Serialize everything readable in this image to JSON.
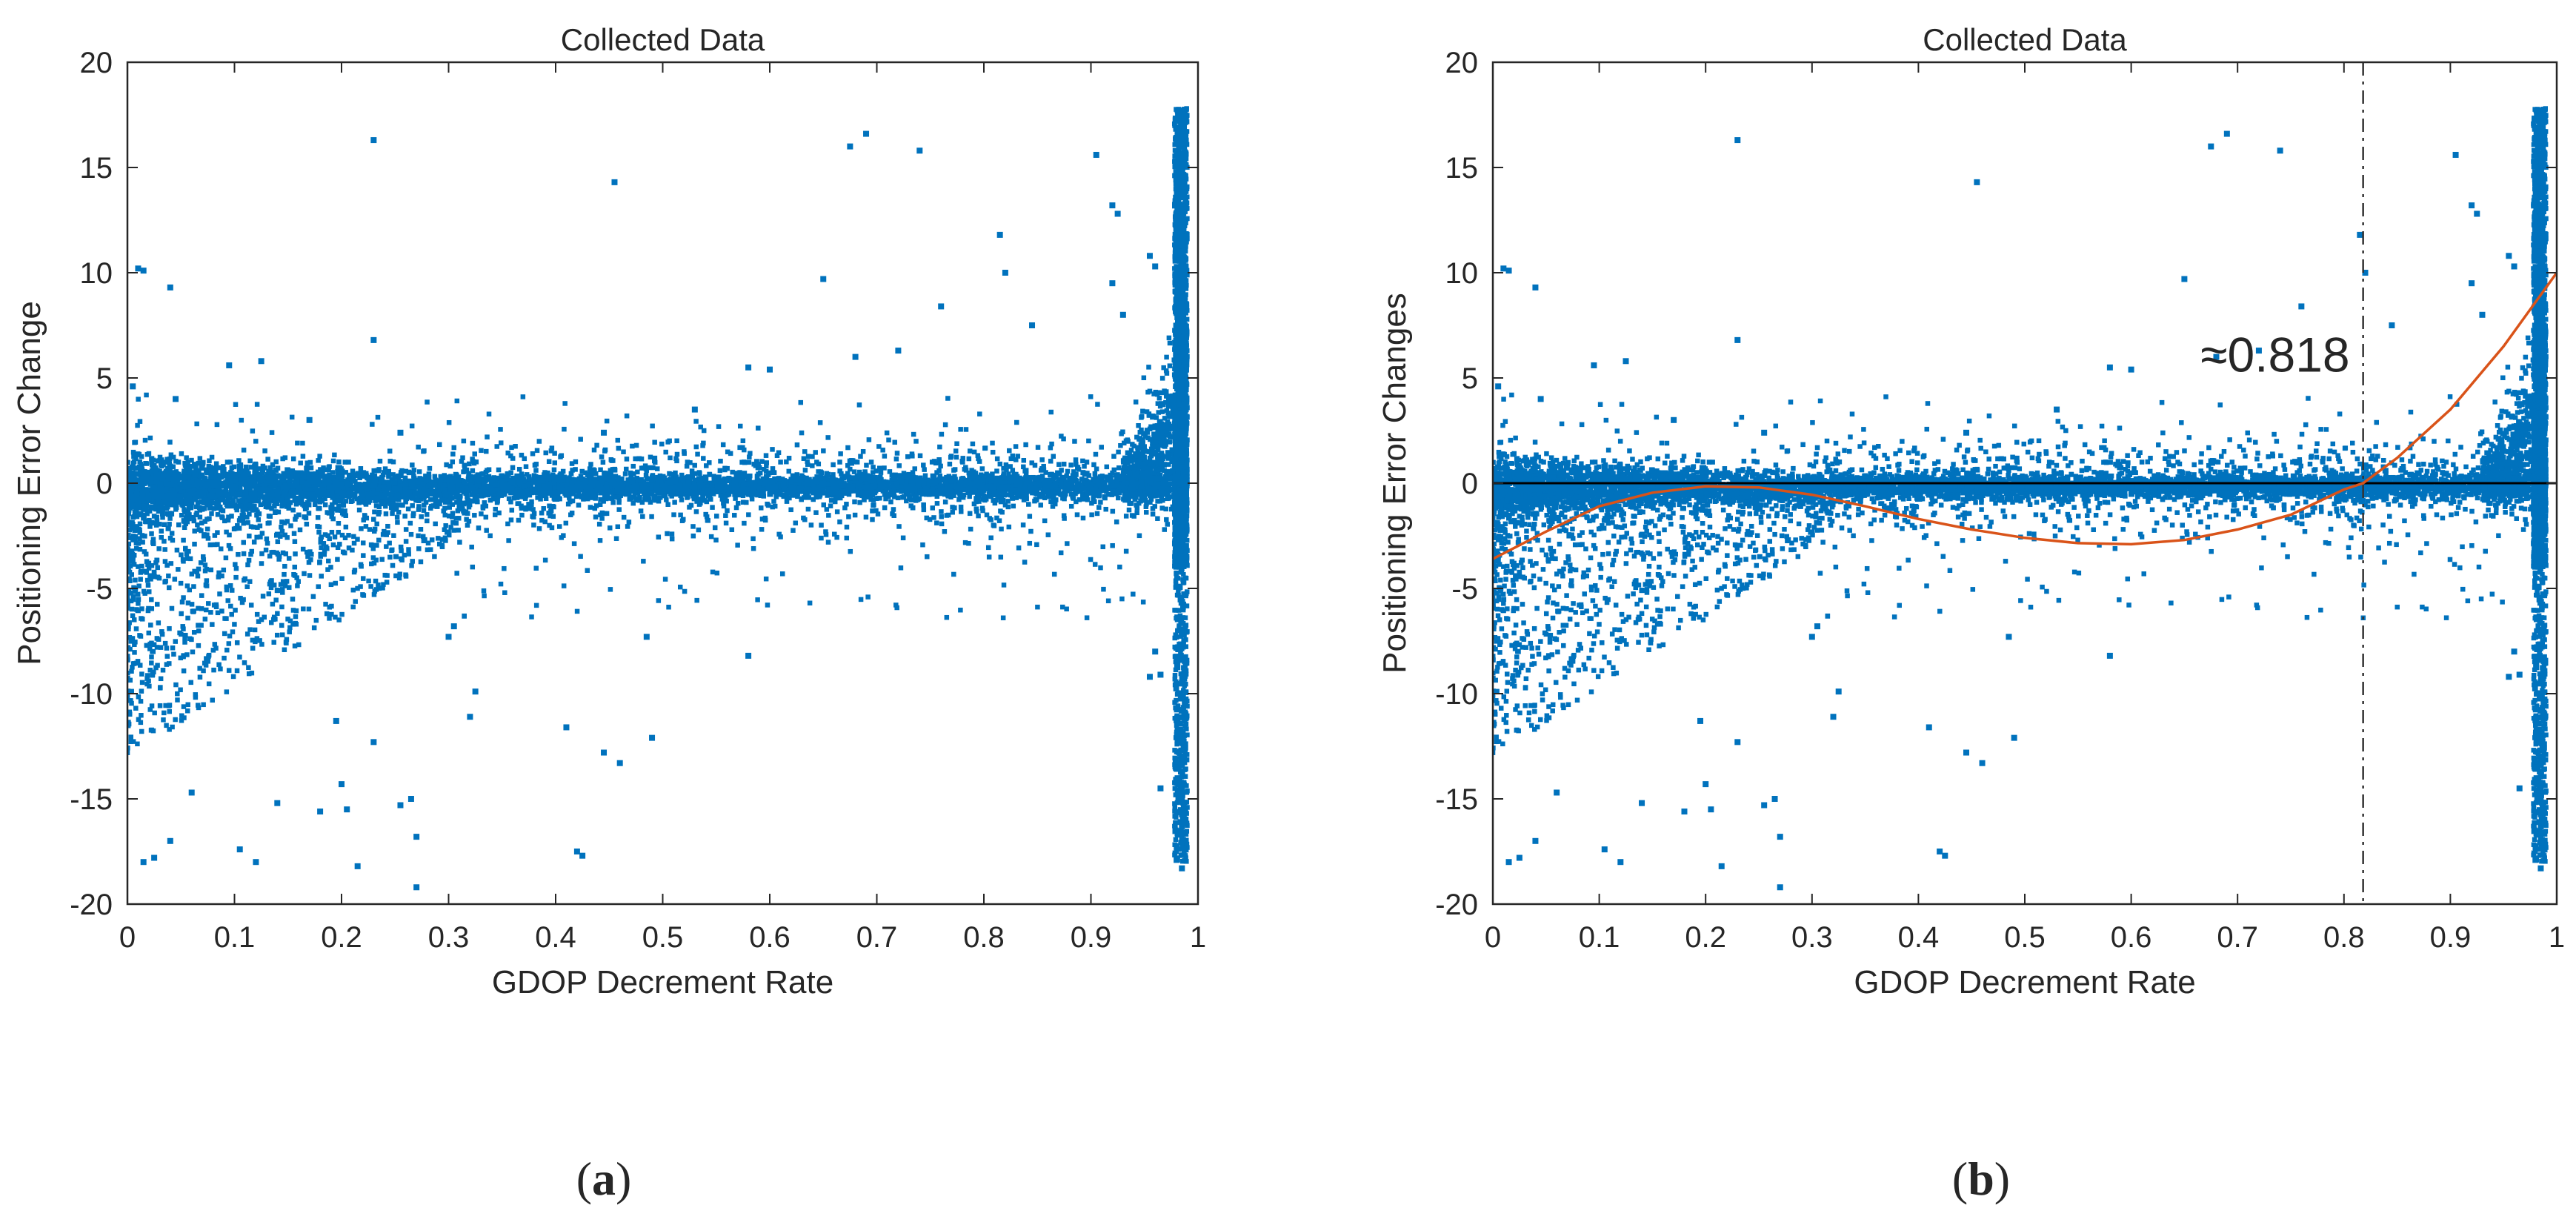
{
  "colors": {
    "points": "#0072BD",
    "fit_curve": "#D95319",
    "zero_line": "#000000",
    "axis": "#262626",
    "background": "#ffffff"
  },
  "panels": [
    {
      "caption_label": "a",
      "caption_open": "(",
      "caption_close": ")"
    },
    {
      "caption_label": "b",
      "caption_open": "(",
      "caption_close": ")"
    }
  ],
  "chart_data": [
    {
      "type": "scatter",
      "title": "Collected Data",
      "xlabel": "GDOP Decrement Rate",
      "ylabel": "Positioning Error Change",
      "xlim": [
        0,
        1
      ],
      "ylim": [
        -20,
        20
      ],
      "xticks": [
        "0",
        "0.1",
        "0.2",
        "0.3",
        "0.4",
        "0.5",
        "0.6",
        "0.7",
        "0.8",
        "0.9",
        "1"
      ],
      "yticks": [
        "20",
        "15",
        "10",
        "5",
        "0",
        "-5",
        "-10",
        "-15",
        "-20"
      ],
      "grid": false,
      "legend": "none",
      "series": [
        {
          "marker": "point",
          "description_of_distribution": "dense band around y=0 for x in [0,0.98]; spread widening toward x=0 on negative side; vertical spike of points near x=0.985 spanning y from about -18 to 18",
          "outliers": [
            [
              0.01,
              10.2
            ],
            [
              0.015,
              10.1
            ],
            [
              0.04,
              9.3
            ],
            [
              0.045,
              4.0
            ],
            [
              0.005,
              4.6
            ],
            [
              0.23,
              16.3
            ],
            [
              0.23,
              6.8
            ],
            [
              0.125,
              5.8
            ],
            [
              0.095,
              5.6
            ],
            [
              0.17,
              3.0
            ],
            [
              0.255,
              2.4
            ],
            [
              0.455,
              14.3
            ],
            [
              0.445,
              2.4
            ],
            [
              0.53,
              3.5
            ],
            [
              0.58,
              5.5
            ],
            [
              0.6,
              5.4
            ],
            [
              0.65,
              9.7
            ],
            [
              0.675,
              16.0
            ],
            [
              0.69,
              16.6
            ],
            [
              0.74,
              15.8
            ],
            [
              0.68,
              6.0
            ],
            [
              0.72,
              6.3
            ],
            [
              0.76,
              8.4
            ],
            [
              0.815,
              11.8
            ],
            [
              0.82,
              10.0
            ],
            [
              0.845,
              7.5
            ],
            [
              0.905,
              15.6
            ],
            [
              0.92,
              13.2
            ],
            [
              0.925,
              12.8
            ],
            [
              0.92,
              9.5
            ],
            [
              0.93,
              8.0
            ],
            [
              0.955,
              10.8
            ],
            [
              0.96,
              10.3
            ],
            [
              0.58,
              -8.2
            ],
            [
              0.485,
              -7.3
            ],
            [
              0.41,
              -11.6
            ],
            [
              0.42,
              -17.5
            ],
            [
              0.425,
              -17.7
            ],
            [
              0.445,
              -12.8
            ],
            [
              0.46,
              -13.3
            ],
            [
              0.49,
              -12.1
            ],
            [
              0.32,
              -11.1
            ],
            [
              0.325,
              -9.9
            ],
            [
              0.3,
              -7.3
            ],
            [
              0.305,
              -6.8
            ],
            [
              0.27,
              -16.8
            ],
            [
              0.265,
              -15.0
            ],
            [
              0.255,
              -15.3
            ],
            [
              0.215,
              -18.2
            ],
            [
              0.205,
              -15.5
            ],
            [
              0.2,
              -14.3
            ],
            [
              0.23,
              -12.3
            ],
            [
              0.27,
              -19.2
            ],
            [
              0.12,
              -18.0
            ],
            [
              0.105,
              -17.4
            ],
            [
              0.14,
              -15.2
            ],
            [
              0.18,
              -15.6
            ],
            [
              0.195,
              -11.3
            ],
            [
              0.015,
              -18.0
            ],
            [
              0.025,
              -17.8
            ],
            [
              0.04,
              -17.0
            ],
            [
              0.06,
              -14.7
            ],
            [
              0.965,
              -14.5
            ],
            [
              0.965,
              -9.1
            ],
            [
              0.955,
              -9.2
            ],
            [
              0.96,
              -8.0
            ],
            [
              0.98,
              -17.9
            ],
            [
              0.985,
              -18.3
            ],
            [
              0.985,
              -16.3
            ],
            [
              0.985,
              -15.0
            ],
            [
              0.985,
              -13.4
            ]
          ]
        }
      ]
    },
    {
      "type": "scatter",
      "title": "Collected Data",
      "xlabel": "GDOP Decrement Rate",
      "ylabel": "Positioning Error Changes",
      "xlim": [
        0,
        1
      ],
      "ylim": [
        -20,
        20
      ],
      "xticks": [
        "0",
        "0.1",
        "0.2",
        "0.3",
        "0.4",
        "0.5",
        "0.6",
        "0.7",
        "0.8",
        "0.9",
        "1"
      ],
      "yticks": [
        "20",
        "15",
        "10",
        "5",
        "0",
        "-5",
        "-10",
        "-15",
        "-20"
      ],
      "grid": false,
      "legend": "none",
      "annotation": {
        "text": "≈0.818",
        "x": 0.818
      },
      "reference_lines": [
        {
          "orientation": "horizontal",
          "y": 0,
          "style": "solid"
        },
        {
          "orientation": "vertical",
          "x": 0.818,
          "style": "dash-dot"
        }
      ],
      "fit_curve": {
        "points": [
          [
            0.0,
            -3.6
          ],
          [
            0.05,
            -2.3
          ],
          [
            0.1,
            -1.1
          ],
          [
            0.15,
            -0.45
          ],
          [
            0.2,
            -0.15
          ],
          [
            0.25,
            -0.2
          ],
          [
            0.3,
            -0.55
          ],
          [
            0.35,
            -1.1
          ],
          [
            0.4,
            -1.7
          ],
          [
            0.45,
            -2.2
          ],
          [
            0.5,
            -2.6
          ],
          [
            0.55,
            -2.85
          ],
          [
            0.6,
            -2.9
          ],
          [
            0.65,
            -2.7
          ],
          [
            0.7,
            -2.2
          ],
          [
            0.75,
            -1.5
          ],
          [
            0.8,
            -0.3
          ],
          [
            0.818,
            0.0
          ],
          [
            0.85,
            1.2
          ],
          [
            0.9,
            3.5
          ],
          [
            0.95,
            6.5
          ],
          [
            1.0,
            10.0
          ]
        ]
      },
      "series": [
        {
          "marker": "point",
          "description_of_distribution": "same collected data as panel (a)"
        }
      ]
    }
  ]
}
